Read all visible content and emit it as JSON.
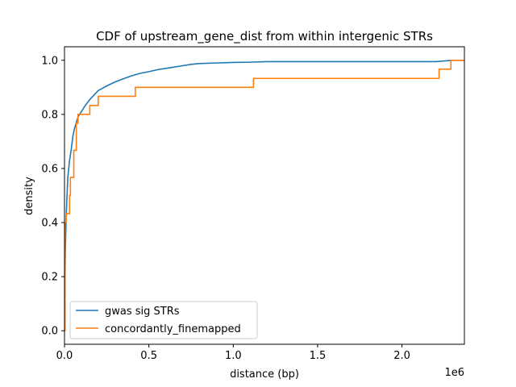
{
  "chart_data": {
    "type": "line",
    "title": "CDF of upstream_gene_dist from within intergenic STRs",
    "xlabel": "distance (bp)",
    "ylabel": "density",
    "x_offset_label": "1e6",
    "xlim": [
      0,
      2.37
    ],
    "ylim": [
      -0.05,
      1.05
    ],
    "x_ticks": [
      {
        "value": 0.0,
        "label": "0.0"
      },
      {
        "value": 0.5,
        "label": "0.5"
      },
      {
        "value": 1.0,
        "label": "1.0"
      },
      {
        "value": 1.5,
        "label": "1.5"
      },
      {
        "value": 2.0,
        "label": "2.0"
      }
    ],
    "y_ticks": [
      {
        "value": 0.0,
        "label": "0.0"
      },
      {
        "value": 0.2,
        "label": "0.2"
      },
      {
        "value": 0.4,
        "label": "0.4"
      },
      {
        "value": 0.6,
        "label": "0.6"
      },
      {
        "value": 0.8,
        "label": "0.8"
      },
      {
        "value": 1.0,
        "label": "1.0"
      }
    ],
    "grid": false,
    "legend_position": "lower-left",
    "series": [
      {
        "name": "gwas sig STRs",
        "color": "#1f77b4",
        "step": false,
        "points": [
          [
            0,
            0.0
          ],
          [
            0.002,
            0.15
          ],
          [
            0.005,
            0.3
          ],
          [
            0.01,
            0.42
          ],
          [
            0.015,
            0.5
          ],
          [
            0.02,
            0.57
          ],
          [
            0.03,
            0.63
          ],
          [
            0.04,
            0.67
          ],
          [
            0.05,
            0.72
          ],
          [
            0.06,
            0.75
          ],
          [
            0.07,
            0.77
          ],
          [
            0.08,
            0.79
          ],
          [
            0.1,
            0.81
          ],
          [
            0.12,
            0.83
          ],
          [
            0.15,
            0.855
          ],
          [
            0.18,
            0.875
          ],
          [
            0.2,
            0.888
          ],
          [
            0.25,
            0.905
          ],
          [
            0.3,
            0.92
          ],
          [
            0.35,
            0.932
          ],
          [
            0.4,
            0.943
          ],
          [
            0.45,
            0.952
          ],
          [
            0.5,
            0.958
          ],
          [
            0.55,
            0.965
          ],
          [
            0.6,
            0.97
          ],
          [
            0.65,
            0.975
          ],
          [
            0.7,
            0.98
          ],
          [
            0.75,
            0.985
          ],
          [
            0.8,
            0.988
          ],
          [
            0.9,
            0.99
          ],
          [
            1.0,
            0.992
          ],
          [
            1.1,
            0.993
          ],
          [
            1.2,
            0.995
          ],
          [
            1.5,
            0.995
          ],
          [
            2.0,
            0.995
          ],
          [
            2.2,
            0.995
          ],
          [
            2.3,
            1.0
          ],
          [
            2.37,
            1.0
          ]
        ]
      },
      {
        "name": "concordantly_finemapped",
        "color": "#ff7f0e",
        "step": true,
        "points": [
          [
            0.0,
            0.0
          ],
          [
            0.003,
            0.4
          ],
          [
            0.01,
            0.433
          ],
          [
            0.03,
            0.5
          ],
          [
            0.035,
            0.567
          ],
          [
            0.055,
            0.667
          ],
          [
            0.07,
            0.767
          ],
          [
            0.08,
            0.8
          ],
          [
            0.15,
            0.833
          ],
          [
            0.2,
            0.867
          ],
          [
            0.42,
            0.9
          ],
          [
            1.12,
            0.933
          ],
          [
            2.22,
            0.967
          ],
          [
            2.29,
            1.0
          ],
          [
            2.37,
            1.0
          ]
        ]
      }
    ]
  }
}
